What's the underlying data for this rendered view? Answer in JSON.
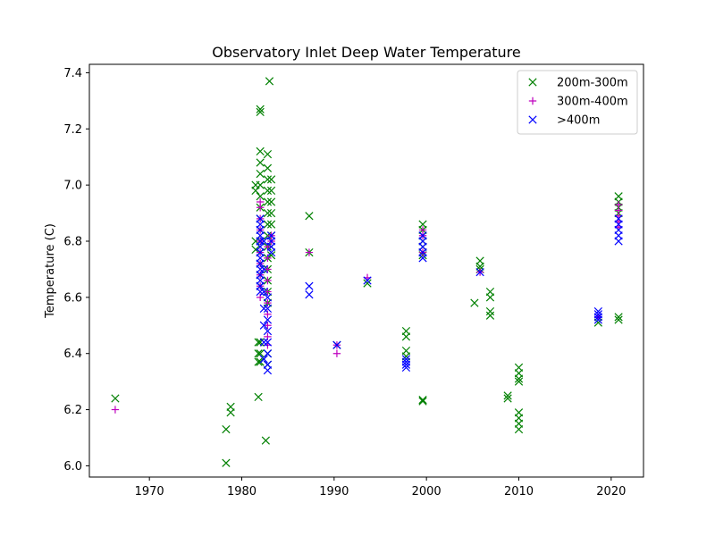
{
  "chart_data": {
    "type": "scatter",
    "title": "Observatory Inlet Deep Water Temperature",
    "xlabel": "",
    "ylabel": "Temperature (C)",
    "xlim": [
      1963.5,
      2023.5
    ],
    "ylim": [
      5.96,
      7.43
    ],
    "xticks": [
      1970,
      1980,
      1990,
      2000,
      2010,
      2020
    ],
    "yticks": [
      6.0,
      6.2,
      6.4,
      6.6,
      6.8,
      7.0,
      7.2,
      7.4
    ],
    "xtick_labels": [
      "1970",
      "1980",
      "1990",
      "2000",
      "2010",
      "2020"
    ],
    "ytick_labels": [
      "6.0",
      "6.2",
      "6.4",
      "6.6",
      "6.8",
      "7.0",
      "7.2",
      "7.4"
    ],
    "grid": false,
    "legend_position": "top-right",
    "series": [
      {
        "name": "200m-300m",
        "marker": "x",
        "color": "#008000",
        "points": [
          [
            1966.3,
            6.24
          ],
          [
            1978.3,
            6.13
          ],
          [
            1978.3,
            6.01
          ],
          [
            1978.8,
            6.21
          ],
          [
            1978.8,
            6.19
          ],
          [
            1981.5,
            7.0
          ],
          [
            1981.5,
            6.98
          ],
          [
            1981.5,
            6.8
          ],
          [
            1981.5,
            6.77
          ],
          [
            1981.8,
            6.44
          ],
          [
            1981.8,
            6.4
          ],
          [
            1981.8,
            6.37
          ],
          [
            1981.8,
            6.245
          ],
          [
            1982.0,
            7.27
          ],
          [
            1982.0,
            7.26
          ],
          [
            1982.0,
            7.12
          ],
          [
            1982.0,
            7.08
          ],
          [
            1982.0,
            7.04
          ],
          [
            1982.0,
            7.0
          ],
          [
            1982.0,
            6.96
          ],
          [
            1982.0,
            6.92
          ],
          [
            1982.0,
            6.88
          ],
          [
            1982.0,
            6.84
          ],
          [
            1982.0,
            6.8
          ],
          [
            1982.0,
            6.76
          ],
          [
            1982.0,
            6.72
          ],
          [
            1982.0,
            6.68
          ],
          [
            1982.0,
            6.64
          ],
          [
            1982.0,
            6.44
          ],
          [
            1982.0,
            6.4
          ],
          [
            1982.0,
            6.37
          ],
          [
            1982.6,
            6.09
          ],
          [
            1982.8,
            7.11
          ],
          [
            1982.8,
            7.06
          ],
          [
            1982.8,
            7.02
          ],
          [
            1982.8,
            6.98
          ],
          [
            1982.8,
            6.94
          ],
          [
            1982.8,
            6.9
          ],
          [
            1982.8,
            6.86
          ],
          [
            1982.8,
            6.82
          ],
          [
            1982.8,
            6.78
          ],
          [
            1982.8,
            6.74
          ],
          [
            1982.8,
            6.7
          ],
          [
            1982.8,
            6.66
          ],
          [
            1982.8,
            6.62
          ],
          [
            1982.8,
            6.58
          ],
          [
            1982.8,
            6.4
          ],
          [
            1982.8,
            6.36
          ],
          [
            1983.0,
            7.37
          ],
          [
            1983.2,
            7.02
          ],
          [
            1983.2,
            6.98
          ],
          [
            1983.2,
            6.94
          ],
          [
            1983.2,
            6.9
          ],
          [
            1983.2,
            6.86
          ],
          [
            1983.2,
            6.82
          ],
          [
            1983.2,
            6.78
          ],
          [
            1983.2,
            6.75
          ],
          [
            1987.3,
            6.89
          ],
          [
            1987.3,
            6.76
          ],
          [
            1990.3,
            6.43
          ],
          [
            1993.6,
            6.65
          ],
          [
            1997.8,
            6.48
          ],
          [
            1997.8,
            6.46
          ],
          [
            1997.8,
            6.41
          ],
          [
            1997.8,
            6.39
          ],
          [
            1999.6,
            6.86
          ],
          [
            1999.6,
            6.84
          ],
          [
            1999.6,
            6.82
          ],
          [
            1999.6,
            6.8
          ],
          [
            1999.6,
            6.78
          ],
          [
            1999.6,
            6.76
          ],
          [
            1999.6,
            6.75
          ],
          [
            1999.6,
            6.235
          ],
          [
            1999.6,
            6.23
          ],
          [
            2005.2,
            6.58
          ],
          [
            2005.8,
            6.73
          ],
          [
            2005.8,
            6.71
          ],
          [
            2005.8,
            6.7
          ],
          [
            2006.9,
            6.62
          ],
          [
            2006.9,
            6.6
          ],
          [
            2006.9,
            6.55
          ],
          [
            2006.9,
            6.535
          ],
          [
            2008.8,
            6.25
          ],
          [
            2008.8,
            6.24
          ],
          [
            2010.0,
            6.35
          ],
          [
            2010.0,
            6.33
          ],
          [
            2010.0,
            6.31
          ],
          [
            2010.0,
            6.3
          ],
          [
            2010.0,
            6.19
          ],
          [
            2010.0,
            6.17
          ],
          [
            2010.0,
            6.15
          ],
          [
            2010.0,
            6.13
          ],
          [
            2018.6,
            6.51
          ],
          [
            2020.8,
            6.96
          ],
          [
            2020.8,
            6.94
          ],
          [
            2020.8,
            6.92
          ],
          [
            2020.8,
            6.9
          ],
          [
            2020.8,
            6.53
          ],
          [
            2020.8,
            6.52
          ]
        ]
      },
      {
        "name": "300m-400m",
        "marker": "+",
        "color": "#bf00bf",
        "points": [
          [
            1966.3,
            6.2
          ],
          [
            1982.0,
            6.94
          ],
          [
            1982.0,
            6.92
          ],
          [
            1982.0,
            6.88
          ],
          [
            1982.0,
            6.84
          ],
          [
            1982.0,
            6.8
          ],
          [
            1982.0,
            6.76
          ],
          [
            1982.0,
            6.72
          ],
          [
            1982.0,
            6.68
          ],
          [
            1982.0,
            6.64
          ],
          [
            1982.0,
            6.6
          ],
          [
            1982.8,
            6.78
          ],
          [
            1982.8,
            6.74
          ],
          [
            1982.8,
            6.7
          ],
          [
            1982.8,
            6.66
          ],
          [
            1982.8,
            6.62
          ],
          [
            1982.8,
            6.58
          ],
          [
            1982.8,
            6.54
          ],
          [
            1982.8,
            6.5
          ],
          [
            1982.8,
            6.46
          ],
          [
            1982.8,
            6.43
          ],
          [
            1983.2,
            6.82
          ],
          [
            1983.2,
            6.8
          ],
          [
            1987.3,
            6.76
          ],
          [
            1990.3,
            6.4
          ],
          [
            1990.3,
            6.43
          ],
          [
            1993.6,
            6.67
          ],
          [
            1999.6,
            6.84
          ],
          [
            1999.6,
            6.82
          ],
          [
            1999.6,
            6.76
          ],
          [
            2005.8,
            6.69
          ],
          [
            2018.6,
            6.53
          ],
          [
            2020.8,
            6.93
          ],
          [
            2020.8,
            6.91
          ],
          [
            2020.8,
            6.89
          ],
          [
            2020.8,
            6.87
          ],
          [
            2020.8,
            6.85
          ]
        ]
      },
      {
        "name": ">400m",
        "marker": "x",
        "color": "#0000ff",
        "points": [
          [
            1982.0,
            6.88
          ],
          [
            1982.0,
            6.86
          ],
          [
            1982.0,
            6.84
          ],
          [
            1982.0,
            6.82
          ],
          [
            1982.0,
            6.8
          ],
          [
            1982.0,
            6.78
          ],
          [
            1982.0,
            6.76
          ],
          [
            1982.0,
            6.74
          ],
          [
            1982.0,
            6.72
          ],
          [
            1982.0,
            6.7
          ],
          [
            1982.0,
            6.68
          ],
          [
            1982.0,
            6.66
          ],
          [
            1982.0,
            6.64
          ],
          [
            1982.0,
            6.62
          ],
          [
            1982.4,
            6.8
          ],
          [
            1982.4,
            6.7
          ],
          [
            1982.4,
            6.62
          ],
          [
            1982.4,
            6.56
          ],
          [
            1982.4,
            6.5
          ],
          [
            1982.4,
            6.44
          ],
          [
            1982.4,
            6.38
          ],
          [
            1982.8,
            6.6
          ],
          [
            1982.8,
            6.56
          ],
          [
            1982.8,
            6.52
          ],
          [
            1982.8,
            6.48
          ],
          [
            1982.8,
            6.44
          ],
          [
            1982.8,
            6.4
          ],
          [
            1982.8,
            6.36
          ],
          [
            1982.8,
            6.34
          ],
          [
            1983.2,
            6.82
          ],
          [
            1983.2,
            6.8
          ],
          [
            1983.2,
            6.78
          ],
          [
            1983.2,
            6.76
          ],
          [
            1987.3,
            6.64
          ],
          [
            1987.3,
            6.61
          ],
          [
            1990.3,
            6.43
          ],
          [
            1993.6,
            6.66
          ],
          [
            1997.8,
            6.38
          ],
          [
            1997.8,
            6.37
          ],
          [
            1997.8,
            6.36
          ],
          [
            1997.8,
            6.35
          ],
          [
            1999.6,
            6.82
          ],
          [
            1999.6,
            6.8
          ],
          [
            1999.6,
            6.78
          ],
          [
            1999.6,
            6.76
          ],
          [
            1999.6,
            6.74
          ],
          [
            2005.8,
            6.69
          ],
          [
            2018.6,
            6.55
          ],
          [
            2018.6,
            6.54
          ],
          [
            2018.6,
            6.53
          ],
          [
            2018.6,
            6.52
          ],
          [
            2020.8,
            6.88
          ],
          [
            2020.8,
            6.86
          ],
          [
            2020.8,
            6.84
          ],
          [
            2020.8,
            6.82
          ],
          [
            2020.8,
            6.8
          ]
        ]
      }
    ]
  }
}
